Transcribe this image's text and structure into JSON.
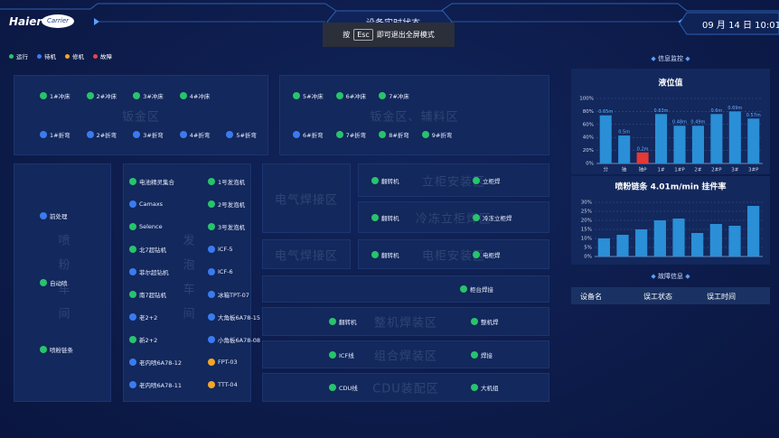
{
  "header": {
    "logo": "Haier",
    "brand": "Carrier",
    "title": "设备实时状态",
    "date": "09 月 14 日 10:01"
  },
  "notice": {
    "before": "按",
    "key": "Esc",
    "after": "即可退出全屏模式"
  },
  "legend": [
    {
      "label": "运行",
      "color": "#27c46b"
    },
    {
      "label": "待机",
      "color": "#3a7bf0"
    },
    {
      "label": "修机",
      "color": "#f5a623"
    },
    {
      "label": "故障",
      "color": "#e8444a"
    }
  ],
  "zones": [
    {
      "label": "钣金区",
      "rows": [
        [
          {
            "name": "1#冲床",
            "status": "运行"
          },
          {
            "name": "2#冲床",
            "status": "运行"
          },
          {
            "name": "3#冲床",
            "status": "运行"
          },
          {
            "name": "4#冲床",
            "status": "运行"
          }
        ],
        [
          {
            "name": "1#折弯",
            "status": "待机"
          },
          {
            "name": "2#折弯",
            "status": "待机"
          },
          {
            "name": "3#折弯",
            "status": "待机"
          },
          {
            "name": "4#折弯",
            "status": "待机"
          },
          {
            "name": "5#折弯",
            "status": "待机"
          }
        ]
      ]
    },
    {
      "label": "钣金区、辅料区",
      "rows": [
        [
          {
            "name": "5#冲床",
            "status": "运行"
          },
          {
            "name": "6#冲床",
            "status": "运行"
          },
          {
            "name": "7#冲床",
            "status": "运行"
          }
        ],
        [
          {
            "name": "6#折弯",
            "status": "待机"
          },
          {
            "name": "7#折弯",
            "status": "运行"
          },
          {
            "name": "8#折弯",
            "status": "运行"
          },
          {
            "name": "9#折弯",
            "status": "运行"
          }
        ]
      ]
    },
    {
      "label": "喷粉车间",
      "rows": [
        [
          {
            "name": "前处理",
            "status": "待机"
          }
        ],
        [
          {
            "name": "自动喷",
            "status": "运行"
          }
        ],
        [
          {
            "name": "喷粉链条",
            "status": "运行"
          }
        ]
      ]
    },
    {
      "label": "发泡车间",
      "rows": [
        [
          {
            "name": "电池精灵集合",
            "status": "运行"
          },
          {
            "name": "1号发泡机",
            "status": "运行"
          }
        ],
        [
          {
            "name": "Camaxs",
            "status": "待机"
          },
          {
            "name": "2号发泡机",
            "status": "运行"
          }
        ],
        [
          {
            "name": "Selence",
            "status": "运行"
          },
          {
            "name": "3号发泡机",
            "status": "运行"
          }
        ],
        [
          {
            "name": "北7超钻机",
            "status": "运行"
          },
          {
            "name": "ICF-5",
            "status": "待机"
          }
        ],
        [
          {
            "name": "菲尔超钻机",
            "status": "待机"
          },
          {
            "name": "ICF-6",
            "status": "待机"
          }
        ],
        [
          {
            "name": "南7超钻机",
            "status": "运行"
          },
          {
            "name": "冰箱TPT-07",
            "status": "待机"
          }
        ],
        [
          {
            "name": "老2+2",
            "status": "待机"
          },
          {
            "name": "大角板6A78-15",
            "status": "待机"
          }
        ],
        [
          {
            "name": "新2+2",
            "status": "运行"
          },
          {
            "name": "小角板6A78-08",
            "status": "待机"
          }
        ],
        [
          {
            "name": "老内喷6A78-12",
            "status": "待机"
          },
          {
            "name": "FPT-03",
            "status": "修机"
          }
        ],
        [
          {
            "name": "老内喷6A78-11",
            "status": "待机"
          },
          {
            "name": "TTT-04",
            "status": "修机"
          }
        ]
      ]
    },
    {
      "label": "电气焊接区",
      "rows": []
    },
    {
      "label": "电气焊接区",
      "rows": []
    },
    {
      "label": "立柜安装区",
      "rows": [
        [
          {
            "name": "翻转机",
            "status": "运行"
          },
          {
            "name": "立柜焊",
            "status": "运行"
          }
        ]
      ]
    },
    {
      "label": "冷冻立柜焊区",
      "rows": [
        [
          {
            "name": "翻转机",
            "status": "运行"
          },
          {
            "name": "冷冻立柜焊",
            "status": "运行"
          }
        ]
      ]
    },
    {
      "label": "电柜安装区",
      "rows": [
        [
          {
            "name": "翻转机",
            "status": "运行"
          },
          {
            "name": "电柜焊",
            "status": "运行"
          }
        ]
      ]
    },
    {
      "rows": [
        [
          {
            "name": "柜台焊接",
            "status": "运行"
          }
        ]
      ]
    },
    {
      "label": "整机焊装区",
      "rows": [
        [
          {
            "name": "翻转机",
            "status": "运行"
          },
          {
            "name": "整机焊",
            "status": "运行"
          }
        ]
      ]
    },
    {
      "label": "组合焊装区",
      "rows": [
        [
          {
            "name": "ICF线",
            "status": "运行"
          },
          {
            "name": "焊接",
            "status": "运行"
          }
        ]
      ]
    },
    {
      "label": "CDU装配区",
      "rows": [
        [
          {
            "name": "CDU线",
            "status": "运行"
          },
          {
            "name": "大机组",
            "status": "运行"
          }
        ]
      ]
    }
  ],
  "monitor": {
    "title": "信息监控",
    "level_chart": {
      "type": "bar",
      "title": "液位值",
      "categories": [
        "分",
        "抽",
        "抽P",
        "1#",
        "1#P",
        "2#",
        "2#P",
        "3#",
        "3#P"
      ],
      "values": [
        74,
        43,
        17,
        76,
        58,
        58,
        76,
        80,
        69
      ],
      "colors": [
        "#2a8fd6",
        "#2a8fd6",
        "#e53935",
        "#2a8fd6",
        "#2a8fd6",
        "#2a8fd6",
        "#2a8fd6",
        "#2a8fd6",
        "#2a8fd6"
      ],
      "bar_labels": [
        "0.65m",
        "0.5m",
        "0.2m",
        "0.63m",
        "0.48m",
        "0.49m",
        "0.6m",
        "0.69m",
        "0.57m"
      ],
      "ylim": [
        0,
        100
      ],
      "yticks": [
        {
          "value": 0,
          "label": "0%"
        },
        {
          "value": 20,
          "label": "20%"
        },
        {
          "value": 40,
          "label": "40%"
        },
        {
          "value": 60,
          "label": "60%"
        },
        {
          "value": 80,
          "label": "80%"
        },
        {
          "value": 100,
          "label": "100%"
        }
      ],
      "grid": true
    },
    "hang_chart": {
      "type": "bar",
      "title": "喷粉链条 4.01m/min 挂件率",
      "values": [
        10,
        12,
        15,
        20,
        21,
        13,
        18,
        17,
        28
      ],
      "color": "#2a8fd6",
      "ylim": [
        0,
        30
      ],
      "yticks": [
        {
          "value": 0,
          "label": "0%"
        },
        {
          "value": 5,
          "label": "5%"
        },
        {
          "value": 10,
          "label": "10%"
        },
        {
          "value": 15,
          "label": "15%"
        },
        {
          "value": 20,
          "label": "20%"
        },
        {
          "value": 25,
          "label": "25%"
        },
        {
          "value": 30,
          "label": "30%"
        }
      ],
      "grid": true
    },
    "fault": {
      "title": "故障信息",
      "columns": [
        "设备名",
        "误工状态",
        "误工时间"
      ]
    }
  }
}
